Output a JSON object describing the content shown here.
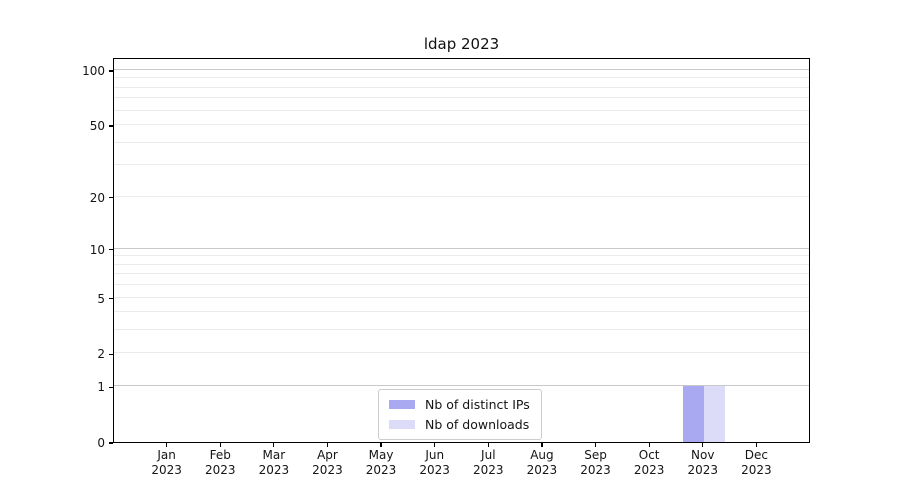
{
  "title": "ldap 2023",
  "chart_data": {
    "type": "bar",
    "title": "ldap 2023",
    "categories": [
      "Jan 2023",
      "Feb 2023",
      "Mar 2023",
      "Apr 2023",
      "May 2023",
      "Jun 2023",
      "Jul 2023",
      "Aug 2023",
      "Sep 2023",
      "Oct 2023",
      "Nov 2023",
      "Dec 2023"
    ],
    "series": [
      {
        "name": "Nb of distinct IPs",
        "color": "#a9a9f2",
        "values": [
          0,
          0,
          0,
          0,
          0,
          0,
          0,
          0,
          0,
          0,
          1,
          0
        ]
      },
      {
        "name": "Nb of downloads",
        "color": "#dcdcf8",
        "values": [
          0,
          0,
          0,
          0,
          0,
          0,
          0,
          0,
          0,
          0,
          1,
          0
        ]
      }
    ],
    "xlabel": "",
    "ylabel": "",
    "yscale": "log1p",
    "ylim": [
      0,
      117
    ],
    "y_tick_labels": [
      0,
      1,
      2,
      5,
      10,
      20,
      50,
      100
    ],
    "y_major_gridlines": [
      1,
      10,
      100
    ],
    "y_minor_gridlines": [
      2,
      3,
      4,
      5,
      6,
      7,
      8,
      9,
      20,
      30,
      40,
      50,
      60,
      70,
      80,
      90
    ],
    "grid": true,
    "legend_position": "lower center"
  },
  "legend": {
    "items": [
      {
        "label": "Nb of distinct IPs",
        "color": "#a9a9f2"
      },
      {
        "label": "Nb of downloads",
        "color": "#dcdcf8"
      }
    ]
  },
  "colors": {
    "major_grid": "#c9c9c9",
    "minor_grid": "#ebebeb",
    "axis": "#000000"
  }
}
